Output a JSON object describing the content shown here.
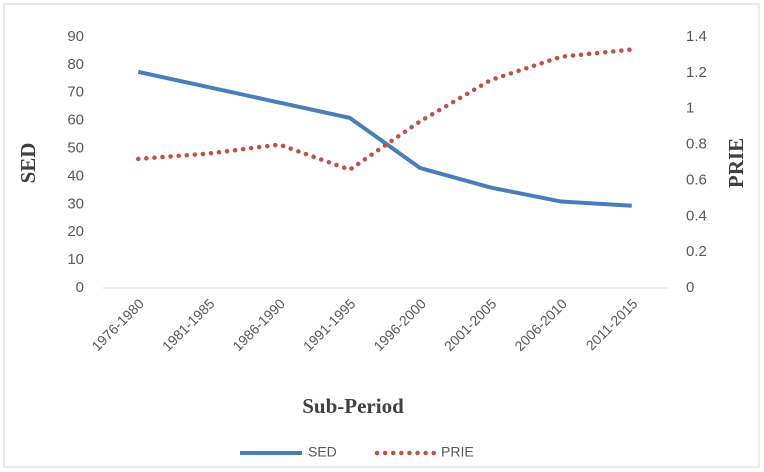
{
  "chart_data": {
    "type": "line",
    "xlabel": "Sub-Period",
    "ylabel": "SED",
    "y2label": "PRIE",
    "categories": [
      "1976-1980",
      "1981-1985",
      "1986-1990",
      "1991-1995",
      "1996-2000",
      "2001-2005",
      "2006-2010",
      "2011-2015"
    ],
    "series": [
      {
        "name": "SED",
        "color": "#4a7ebb",
        "style": "solid",
        "values": [
          77.5,
          72,
          66.5,
          61,
          43,
          36,
          31,
          29.5
        ]
      },
      {
        "name": "PRIE",
        "color": "#c0504d",
        "style": "dotted",
        "axis": "y2",
        "values": [
          0.72,
          0.75,
          0.8,
          0.66,
          0.93,
          1.16,
          1.29,
          1.33
        ]
      }
    ],
    "ylim": [
      0,
      90
    ],
    "yticks": [
      0,
      10,
      20,
      30,
      40,
      50,
      60,
      70,
      80,
      90
    ],
    "y2lim": [
      0,
      1.4
    ],
    "y2ticks": [
      0,
      0.2,
      0.4,
      0.6,
      0.8,
      1,
      1.2,
      1.4
    ],
    "grid": false,
    "legend": "bottom"
  }
}
